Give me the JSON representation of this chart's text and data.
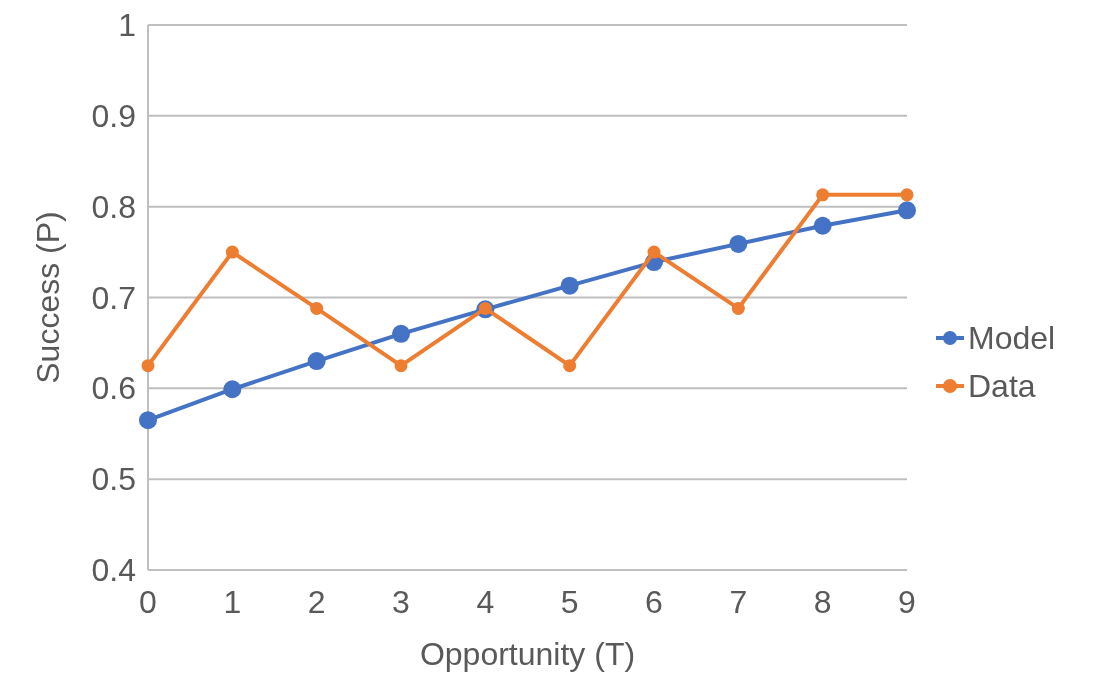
{
  "chart_data": {
    "type": "line",
    "xlabel": "Opportunity (T)",
    "ylabel": "Success (P)",
    "x": [
      0,
      1,
      2,
      3,
      4,
      5,
      6,
      7,
      8,
      9
    ],
    "series": [
      {
        "name": "Model",
        "color": "#4472c4",
        "values": [
          0.565,
          0.599,
          0.63,
          0.66,
          0.687,
          0.713,
          0.739,
          0.759,
          0.779,
          0.796
        ]
      },
      {
        "name": "Data",
        "color": "#ed7d31",
        "values": [
          0.625,
          0.75,
          0.688,
          0.625,
          0.688,
          0.625,
          0.75,
          0.688,
          0.813,
          0.813
        ]
      }
    ],
    "xlim": [
      0,
      9
    ],
    "xticks": [
      0,
      1,
      2,
      3,
      4,
      5,
      6,
      7,
      8,
      9
    ],
    "ylim": [
      0.4,
      1
    ],
    "yticks": [
      0.4,
      0.5,
      0.6,
      0.7,
      0.8,
      0.9,
      1
    ],
    "grid": "y",
    "legend": "right",
    "marker": "circle",
    "line_style": "solid"
  }
}
